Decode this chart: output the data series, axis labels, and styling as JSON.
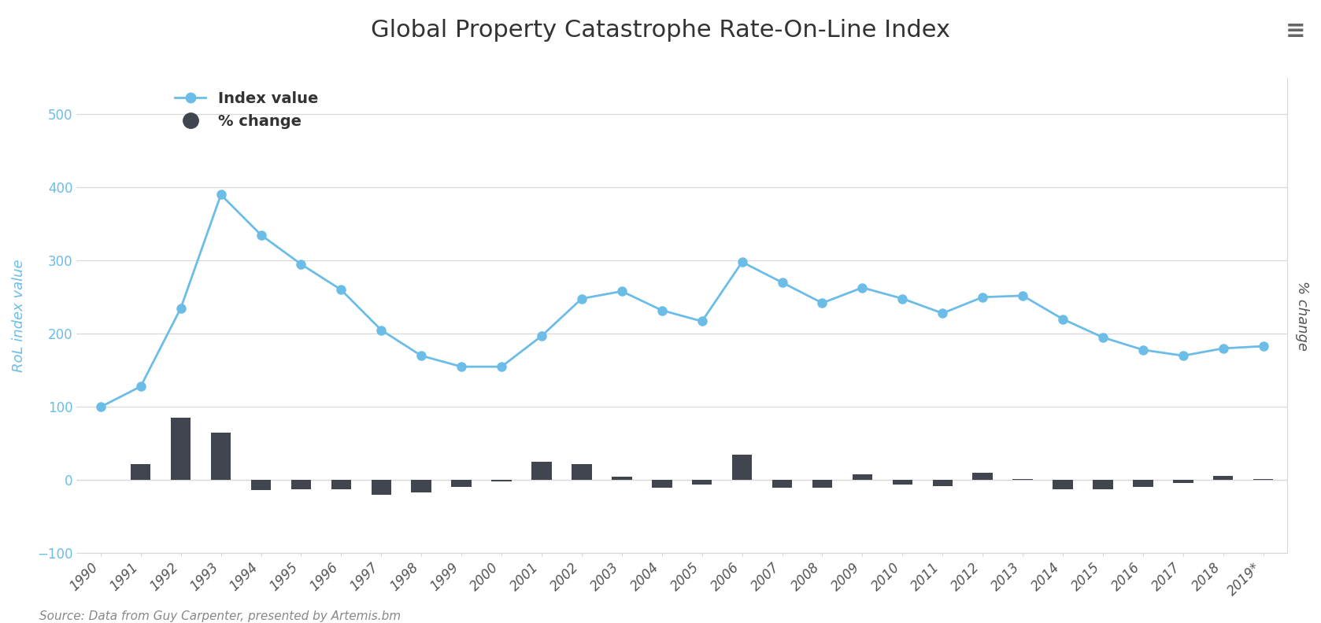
{
  "title": "Global Property Catastrophe Rate-On-Line Index",
  "source_text": "Source: Data from Guy Carpenter, presented by Artemis.bm",
  "years": [
    "1990",
    "1991",
    "1992",
    "1993",
    "1994",
    "1995",
    "1996",
    "1997",
    "1998",
    "1999",
    "2000",
    "2001",
    "2002",
    "2003",
    "2004",
    "2005",
    "2006",
    "2007",
    "2008",
    "2009",
    "2010",
    "2011",
    "2012",
    "2013",
    "2014",
    "2015",
    "2016",
    "2017",
    "2018",
    "2019*"
  ],
  "index_values": [
    100,
    128,
    235,
    390,
    335,
    295,
    260,
    205,
    170,
    155,
    155,
    197,
    248,
    258,
    232,
    217,
    298,
    270,
    242,
    263,
    248,
    228,
    250,
    252,
    220,
    195,
    178,
    170,
    180,
    183
  ],
  "pct_change": [
    0,
    22,
    85,
    65,
    -14,
    -12,
    -12,
    -20,
    -17,
    -9,
    -2,
    25,
    22,
    5,
    -10,
    -6,
    35,
    -10,
    -10,
    8,
    -6,
    -8,
    10,
    1,
    -12,
    -12,
    -9,
    -4,
    6,
    2
  ],
  "line_color": "#6bbde8",
  "bar_color": "#404550",
  "ylabel_left": "RoL index value",
  "ylabel_right": "% change",
  "left_axis_color": "#6bbde8",
  "right_axis_color": "#555555",
  "bg_color": "#ffffff",
  "grid_color": "#d8d8d8",
  "ylim_main": [
    -100,
    550
  ],
  "yticks_main": [
    -100,
    0,
    100,
    200,
    300,
    400,
    500
  ],
  "bar_scale_factor": 2.2,
  "title_fontsize": 22,
  "legend_fontsize": 14,
  "axis_label_fontsize": 13,
  "tick_fontsize": 12,
  "source_fontsize": 11
}
